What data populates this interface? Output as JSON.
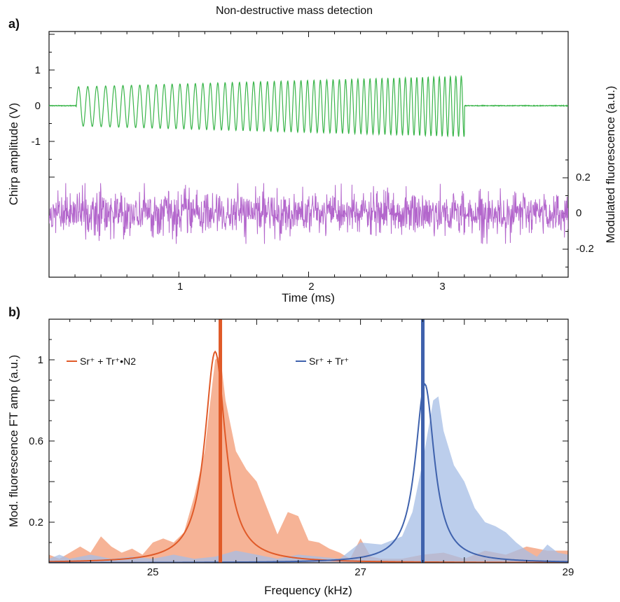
{
  "figure": {
    "title": "Non-destructive mass detection",
    "panel_a_label": "a)",
    "panel_b_label": "b)"
  },
  "colors": {
    "chirp": "#3ab54a",
    "fluorescence": "#b366cc",
    "orange_line": "#e05a28",
    "orange_fill": "#f4a684",
    "blue_line": "#3f62ad",
    "blue_fill": "#a6bde6"
  },
  "chart_data": [
    {
      "type": "line",
      "panel": "a",
      "xlabel": "Time (ms)",
      "ylabel_left": "Chirp amplitude (V)",
      "ylabel_right": "Modulated fluorescence (a.u.)",
      "xlim": [
        0,
        4
      ],
      "x_ticks": [
        1,
        2,
        3
      ],
      "y_left_ticks": [
        1,
        0,
        -1
      ],
      "y_right_ticks": [
        0.2,
        0,
        -0.2
      ],
      "series": [
        {
          "key": "chirp",
          "axis": "left",
          "samples": 2000,
          "on_start": 0.21,
          "on_end": 3.2,
          "freq_start_khz": 14,
          "freq_end_khz": 24,
          "amp_start": 0.55,
          "amp_end": 0.85,
          "offset": -0.02,
          "noise": 0.02
        },
        {
          "key": "fluorescence",
          "axis": "right",
          "samples": 1400,
          "noise_std": 0.06,
          "peak_abs": 0.17
        }
      ]
    },
    {
      "type": "area",
      "panel": "b",
      "xlabel": "Frequency (kHz)",
      "ylabel": "Mod. fluorescence FT amp (a.u.)",
      "xlim": [
        24,
        29
      ],
      "ylim": [
        0,
        1.2
      ],
      "x_ticks": [
        25,
        27,
        29
      ],
      "y_ticks": [
        0.2,
        0.6,
        1
      ],
      "series": [
        {
          "name": "Sr⁺ + Tr⁺•N2",
          "key": "orange",
          "area": {
            "x": [
              24.0,
              24.1,
              24.2,
              24.3,
              24.4,
              24.5,
              24.6,
              24.7,
              24.8,
              24.9,
              25.0,
              25.1,
              25.2,
              25.3,
              25.4,
              25.5,
              25.55,
              25.6,
              25.65,
              25.7,
              25.8,
              25.9,
              26.0,
              26.1,
              26.2,
              26.3,
              26.4,
              26.5,
              26.6,
              26.7,
              26.8,
              26.9,
              27.0,
              27.1,
              27.2,
              27.4,
              27.6,
              27.8,
              28.0,
              28.2,
              28.4,
              28.6,
              28.8,
              29.0
            ],
            "y": [
              0.04,
              0.02,
              0.05,
              0.08,
              0.05,
              0.13,
              0.08,
              0.05,
              0.07,
              0.04,
              0.1,
              0.12,
              0.1,
              0.15,
              0.33,
              0.55,
              0.78,
              1.0,
              1.02,
              0.8,
              0.55,
              0.46,
              0.4,
              0.27,
              0.14,
              0.25,
              0.23,
              0.11,
              0.1,
              0.07,
              0.05,
              0.02,
              0.12,
              0.03,
              0.02,
              0.02,
              0.04,
              0.05,
              0.02,
              0.06,
              0.04,
              0.08,
              0.06,
              0.06
            ]
          },
          "fit": {
            "center": 25.6,
            "peak": 1.04,
            "hwhm": 0.12,
            "baseline": 0.0
          },
          "marker_x": 25.65
        },
        {
          "name": "Sr⁺ + Tr⁺",
          "key": "blue",
          "area": {
            "x": [
              24.0,
              24.1,
              24.2,
              24.3,
              24.4,
              24.6,
              24.8,
              25.0,
              25.2,
              25.4,
              25.6,
              25.8,
              26.0,
              26.2,
              26.4,
              26.6,
              26.8,
              27.0,
              27.2,
              27.4,
              27.5,
              27.6,
              27.7,
              27.75,
              27.8,
              27.9,
              28.0,
              28.1,
              28.2,
              28.3,
              28.4,
              28.5,
              28.6,
              28.7,
              28.8,
              28.9,
              29.0
            ],
            "y": [
              0.02,
              0.04,
              0.02,
              0.03,
              0.04,
              0.02,
              0.03,
              0.02,
              0.04,
              0.02,
              0.03,
              0.06,
              0.04,
              0.02,
              0.04,
              0.03,
              0.02,
              0.1,
              0.09,
              0.13,
              0.25,
              0.5,
              0.8,
              0.82,
              0.65,
              0.48,
              0.4,
              0.27,
              0.2,
              0.18,
              0.15,
              0.1,
              0.06,
              0.03,
              0.09,
              0.05,
              0.04
            ]
          },
          "fit": {
            "center": 27.62,
            "peak": 0.88,
            "hwhm": 0.11,
            "baseline": 0.0
          },
          "marker_x": 27.6
        }
      ]
    }
  ]
}
